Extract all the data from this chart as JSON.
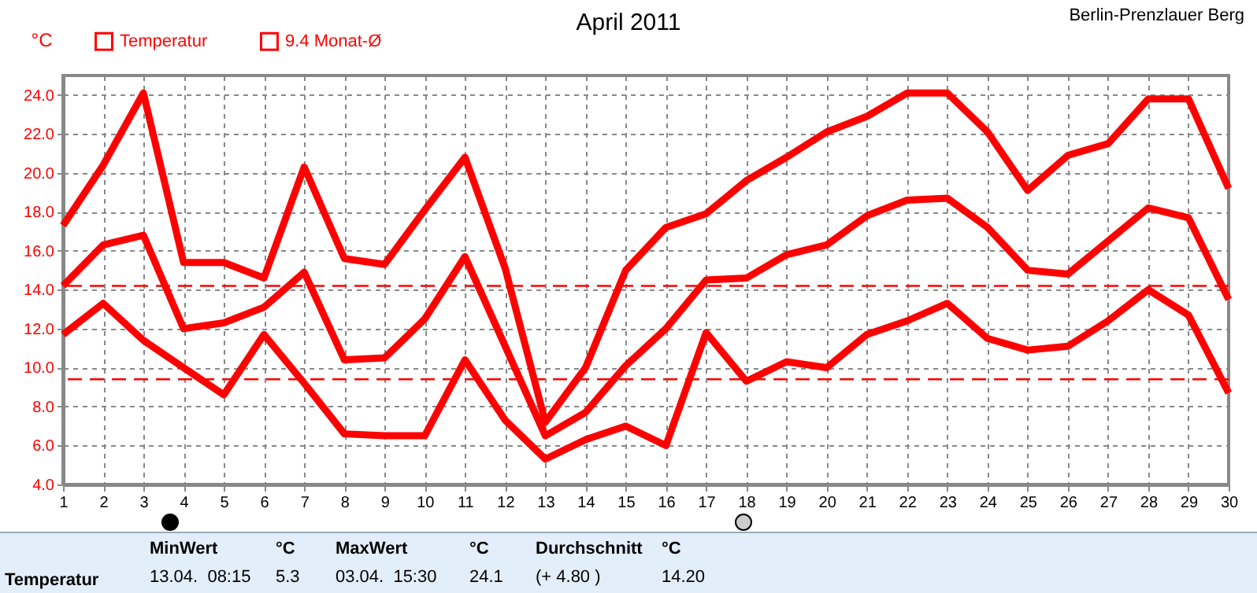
{
  "chart_data": {
    "type": "line",
    "title": "April 2011",
    "subtitle": "Berlin-Prenzlauer Berg",
    "ylabel": "°C",
    "x": [
      1,
      2,
      3,
      4,
      5,
      6,
      7,
      8,
      9,
      10,
      11,
      12,
      13,
      14,
      15,
      16,
      17,
      18,
      19,
      20,
      21,
      22,
      23,
      24,
      25,
      26,
      27,
      28,
      29,
      30
    ],
    "series": [
      {
        "color": "#ff0000",
        "values": [
          17.3,
          20.4,
          24.1,
          15.4,
          15.4,
          14.6,
          20.3,
          15.6,
          15.3,
          18.1,
          20.8,
          15.1,
          7.2,
          10.0,
          15.0,
          17.2,
          17.9,
          19.6,
          20.8,
          22.1,
          22.9,
          24.1,
          24.1,
          22.1,
          19.1,
          20.9,
          21.5,
          23.8,
          23.8,
          19.2
        ]
      },
      {
        "name": "Temperatur",
        "color": "#ff0000",
        "values": [
          14.2,
          16.3,
          16.8,
          12.0,
          12.3,
          13.1,
          14.9,
          10.4,
          10.5,
          12.5,
          15.7,
          11.1,
          6.5,
          7.7,
          10.1,
          12.0,
          14.5,
          14.6,
          15.8,
          16.3,
          17.8,
          18.6,
          18.7,
          17.2,
          15.0,
          14.8,
          16.5,
          18.2,
          17.7,
          13.5
        ]
      },
      {
        "color": "#ff0000",
        "values": [
          11.7,
          13.3,
          11.4,
          10.0,
          8.6,
          11.7,
          9.2,
          6.6,
          6.5,
          6.5,
          10.4,
          7.3,
          5.3,
          6.3,
          7.0,
          6.0,
          11.8,
          9.3,
          10.3,
          10.0,
          11.7,
          12.4,
          13.3,
          11.5,
          10.9,
          11.1,
          12.4,
          14.0,
          12.7,
          8.7
        ]
      }
    ],
    "ref_lines": [
      {
        "axis": "y",
        "value": 14.2,
        "color": "#ff0000",
        "line_style": "dashed"
      },
      {
        "axis": "y",
        "value": 9.4,
        "label": "9.4 Monat-Ø",
        "color": "#ff0000",
        "line_style": "dashed"
      }
    ],
    "xlim": [
      1,
      30
    ],
    "xticks": [
      1,
      2,
      3,
      4,
      5,
      6,
      7,
      8,
      9,
      10,
      11,
      12,
      13,
      14,
      15,
      16,
      17,
      18,
      19,
      20,
      21,
      22,
      23,
      24,
      25,
      26,
      27,
      28,
      29,
      30
    ],
    "ylim": [
      4,
      25
    ],
    "yticks": [
      {
        "value": 4,
        "label": "4.0"
      },
      {
        "value": 6,
        "label": "6.0"
      },
      {
        "value": 8,
        "label": "8.0"
      },
      {
        "value": 10,
        "label": "10.0"
      },
      {
        "value": 12,
        "label": "12.0"
      },
      {
        "value": 14,
        "label": "14.0"
      },
      {
        "value": 16,
        "label": "16.0"
      },
      {
        "value": 18,
        "label": "18.0"
      },
      {
        "value": 20,
        "label": "20.0"
      },
      {
        "value": 22,
        "label": "22.0"
      },
      {
        "value": 24,
        "label": "24.0"
      }
    ],
    "grid": true,
    "legend": "top left",
    "line_style": "solid",
    "marker": "none",
    "annotations": [
      "MinWert",
      "°C",
      "MaxWert",
      "°C",
      "Durchschnitt",
      "°C",
      "Temperatur",
      "13.04.  08:15",
      "5.3",
      "03.04.  15:30",
      "24.1",
      "(+ 4.80 )",
      "14.20"
    ]
  }
}
